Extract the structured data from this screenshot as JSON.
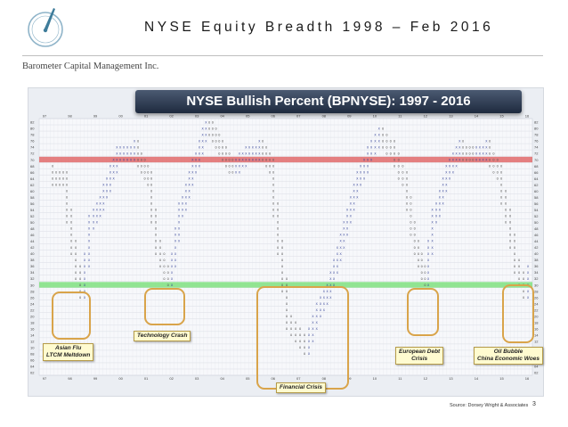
{
  "slide": {
    "title": "NYSE Equity Breadth 1998 – Feb 2016",
    "company": "Barometer Capital Management Inc.",
    "source": "Source: Dorsey Wright & Associates",
    "page_number": "3"
  },
  "chart": {
    "banner_title": "NYSE Bullish Percent (BPNYSE): 1997 - 2016",
    "top_year_labels": [
      "97",
      "98",
      "99",
      "00",
      "01",
      "02",
      "03",
      "04",
      "05",
      "06",
      "07",
      "08",
      "09",
      "10",
      "11",
      "12",
      "13",
      "14",
      "15",
      "16"
    ],
    "bottom_year_labels": [
      "97",
      "98",
      "99",
      "00",
      "01",
      "02",
      "03",
      "04",
      "05",
      "06",
      "07",
      "08",
      "09",
      "10",
      "11",
      "12",
      "13",
      "14",
      "15",
      "16"
    ],
    "y_axis_labels": [
      "82",
      "80",
      "78",
      "76",
      "74",
      "72",
      "70",
      "68",
      "66",
      "64",
      "62",
      "60",
      "58",
      "56",
      "54",
      "52",
      "50",
      "48",
      "46",
      "44",
      "42",
      "40",
      "38",
      "36",
      "34",
      "32",
      "30",
      "28",
      "26",
      "24",
      "22",
      "20",
      "18",
      "16",
      "14",
      "12",
      "10",
      "08",
      "06",
      "04",
      "02"
    ],
    "callouts": [
      {
        "text": "Asian Flu\nLTCM Meltdown"
      },
      {
        "text": "Technology Crash"
      },
      {
        "text": "Financial Crisis"
      },
      {
        "text": "European Debt\nCrisis"
      },
      {
        "text": "Oil Bubble\nChina Economic Woes"
      }
    ]
  },
  "colors": {
    "banner": "#2a3750",
    "red_band": "#e06a6a",
    "green_band": "#7fe07f",
    "ring": "#d9a44a",
    "callout_bg": "#fffbd0",
    "x_mark": "#2d3c93",
    "o_mark": "#555555"
  }
}
